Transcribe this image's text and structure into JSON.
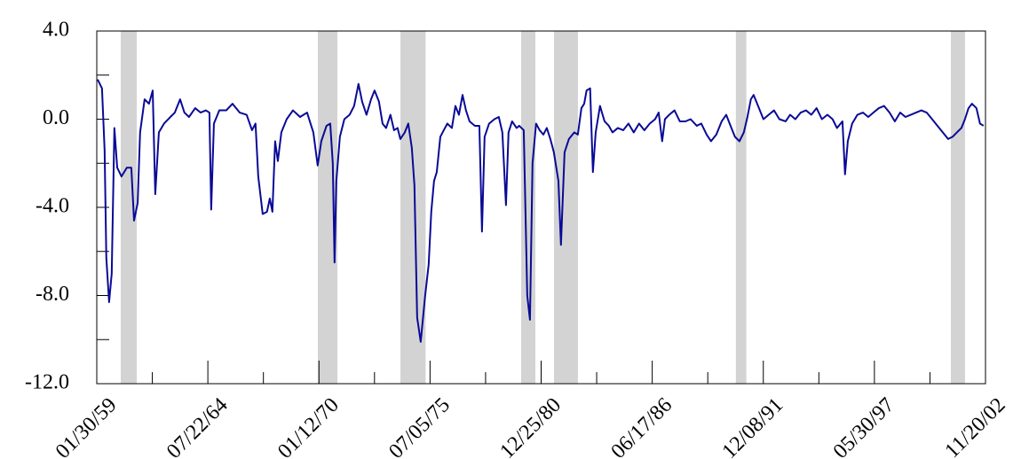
{
  "chart_data": {
    "type": "line",
    "color": "#0a0a96",
    "shade_color": "#d3d3d3",
    "xlim": [
      "01/30/59",
      "11/20/02"
    ],
    "xticks": [
      "01/30/59",
      "07/22/64",
      "01/12/70",
      "07/05/75",
      "12/25/80",
      "06/17/86",
      "12/08/91",
      "05/30/97",
      "11/20/02"
    ],
    "ylim": [
      -12,
      4
    ],
    "yticks": [
      {
        "value": 4,
        "label": "4.0"
      },
      {
        "value": 0,
        "label": "0.0"
      },
      {
        "value": -4,
        "label": "-4.0"
      },
      {
        "value": -8,
        "label": "-8.0"
      },
      {
        "value": -12,
        "label": "-12.0"
      }
    ],
    "shaded_ranges": [
      [
        "04/05/60",
        "01/19/61"
      ],
      [
        "12/23/69",
        "12/10/70"
      ],
      [
        "01/18/74",
        "04/16/75"
      ],
      [
        "01/01/80",
        "09/12/80"
      ],
      [
        "08/13/81",
        "10/18/82"
      ],
      [
        "08/01/90",
        "02/05/91"
      ],
      [
        "03/06/01",
        "11/16/01"
      ]
    ],
    "x": [
      "02/14/59",
      "05/04/59",
      "06/20/59",
      "07/21/59",
      "09/09/59",
      "10/26/59",
      "12/13/59",
      "02/02/60",
      "04/19/60",
      "07/24/60",
      "10/13/60",
      "12/01/60",
      "02/04/61",
      "03/20/61",
      "06/09/61",
      "08/27/61",
      "11/02/61",
      "12/18/61",
      "02/21/62",
      "05/25/62",
      "09/16/62",
      "12/05/62",
      "03/10/63",
      "05/27/63",
      "08/17/63",
      "12/07/63",
      "03/12/64",
      "06/16/64",
      "08/19/64",
      "09/20/64",
      "11/08/64",
      "02/13/65",
      "06/18/65",
      "10/09/65",
      "02/15/66",
      "06/20/66",
      "09/25/66",
      "11/27/66",
      "01/15/67",
      "04/05/67",
      "06/22/67",
      "08/11/67",
      "09/27/67",
      "11/15/67",
      "01/03/68",
      "03/06/68",
      "06/10/68",
      "10/01/68",
      "02/06/69",
      "06/12/69",
      "10/03/69",
      "12/20/69",
      "02/23/70",
      "05/28/70",
      "08/03/70",
      "09/18/70",
      "10/20/70",
      "11/21/70",
      "01/24/71",
      "04/14/71",
      "07/18/71",
      "10/07/71",
      "12/25/71",
      "02/28/72",
      "05/17/72",
      "08/07/72",
      "10/09/72",
      "12/27/72",
      "03/02/73",
      "05/05/73",
      "07/22/73",
      "09/25/73",
      "11/28/73",
      "01/16/74",
      "04/06/74",
      "06/08/74",
      "08/11/74",
      "09/27/74",
      "11/15/74",
      "01/18/75",
      "04/08/75",
      "06/10/75",
      "07/27/75",
      "09/15/75",
      "11/03/75",
      "01/06/76",
      "03/08/76",
      "05/11/76",
      "08/01/76",
      "10/04/76",
      "12/06/76",
      "02/09/77",
      "04/12/77",
      "06/15/77",
      "09/19/77",
      "12/09/77",
      "01/25/78",
      "03/13/78",
      "06/02/78",
      "09/06/78",
      "11/24/78",
      "01/27/79",
      "04/02/79",
      "05/18/79",
      "07/21/79",
      "10/10/79",
      "11/26/79",
      "02/16/80",
      "04/19/80",
      "06/07/80",
      "07/23/80",
      "09/25/80",
      "11/28/80",
      "02/03/81",
      "04/06/81",
      "06/09/81",
      "08/11/81",
      "11/01/81",
      "12/17/81",
      "02/20/82",
      "05/09/82",
      "08/14/82",
      "10/17/82",
      "12/20/82",
      "02/08/83",
      "03/23/83",
      "05/26/83",
      "07/15/83",
      "09/03/83",
      "11/20/83",
      "02/10/84",
      "04/27/84",
      "07/02/84",
      "10/06/84",
      "01/11/85",
      "04/15/85",
      "07/19/85",
      "10/23/85",
      "01/27/86",
      "05/03/86",
      "08/08/86",
      "10/11/86",
      "12/13/86",
      "02/01/87",
      "04/19/87",
      "07/23/87",
      "10/27/87",
      "02/04/88",
      "05/08/88",
      "08/27/88",
      "11/16/88",
      "02/21/89",
      "05/10/89",
      "08/14/89",
      "11/18/89",
      "02/08/90",
      "04/11/90",
      "07/15/90",
      "10/04/90",
      "12/22/90",
      "02/25/91",
      "04/28/91",
      "06/16/91",
      "09/05/91",
      "12/10/91",
      "03/14/92",
      "06/18/92",
      "09/22/92",
      "01/13/93",
      "04/03/93",
      "07/07/93",
      "10/11/93",
      "01/15/94",
      "04/20/94",
      "07/24/94",
      "10/28/94",
      "02/04/95",
      "05/08/95",
      "07/26/95",
      "11/02/95",
      "12/18/95",
      "02/06/96",
      "04/24/96",
      "07/28/96",
      "11/04/96",
      "02/08/97",
      "05/13/97",
      "08/17/97",
      "11/21/97",
      "02/26/98",
      "06/02/98",
      "09/06/98",
      "12/10/98",
      "03/15/99",
      "06/18/99",
      "09/23/99",
      "12/27/99",
      "04/03/00",
      "07/08/00",
      "10/12/00",
      "01/16/01",
      "04/06/01",
      "06/23/01",
      "09/12/01",
      "11/15/01",
      "01/18/02",
      "03/21/02",
      "06/10/02",
      "08/13/02",
      "10/16/02"
    ],
    "values": [
      1.8,
      1.4,
      -1.4,
      -6.3,
      -8.3,
      -7.0,
      -0.4,
      -2.2,
      -2.6,
      -2.2,
      -2.2,
      -4.6,
      -3.8,
      -0.6,
      0.9,
      0.7,
      1.3,
      -3.4,
      -0.6,
      -0.2,
      0.1,
      0.3,
      0.9,
      0.3,
      0.1,
      0.5,
      0.3,
      0.4,
      0.3,
      -4.1,
      -0.2,
      0.4,
      0.4,
      0.7,
      0.3,
      0.2,
      -0.5,
      -0.2,
      -2.6,
      -4.3,
      -4.2,
      -3.6,
      -4.2,
      -1.0,
      -1.9,
      -0.6,
      0.0,
      0.4,
      0.1,
      0.3,
      -0.6,
      -2.1,
      -1.0,
      -0.3,
      -0.2,
      -2.0,
      -6.5,
      -2.8,
      -0.8,
      0.0,
      0.2,
      0.6,
      1.6,
      0.8,
      0.2,
      0.9,
      1.3,
      0.8,
      -0.2,
      -0.4,
      0.2,
      -0.5,
      -0.4,
      -0.9,
      -0.6,
      -0.2,
      -1.3,
      -3.0,
      -9.0,
      -10.1,
      -8.0,
      -6.6,
      -4.2,
      -2.8,
      -2.4,
      -0.8,
      -0.5,
      -0.2,
      -0.4,
      0.6,
      0.2,
      1.1,
      0.4,
      -0.1,
      -0.3,
      -0.3,
      -5.1,
      -0.8,
      -0.2,
      0.0,
      0.1,
      -0.6,
      -3.9,
      -0.6,
      -0.1,
      -0.4,
      -0.3,
      -0.5,
      -8.0,
      -9.1,
      -2.0,
      -0.2,
      -0.5,
      -0.7,
      -0.4,
      -0.9,
      -1.5,
      -2.8,
      -5.7,
      -1.5,
      -0.9,
      -0.6,
      -0.7,
      0.5,
      0.7,
      1.3,
      1.4,
      -2.4,
      -0.6,
      0.6,
      -0.1,
      -0.3,
      -0.6,
      -0.4,
      -0.5,
      -0.2,
      -0.6,
      -0.2,
      -0.5,
      -0.2,
      0.0,
      0.3,
      -1.0,
      0.0,
      0.2,
      0.4,
      -0.1,
      -0.1,
      0.0,
      -0.3,
      -0.2,
      -0.7,
      -1.0,
      -0.7,
      -0.1,
      0.2,
      -0.2,
      -0.8,
      -1.0,
      -0.6,
      0.1,
      0.9,
      1.1,
      0.6,
      0.0,
      0.2,
      0.4,
      0.0,
      -0.1,
      0.2,
      0.0,
      0.3,
      0.4,
      0.2,
      0.5,
      0.0,
      0.2,
      0.0,
      -0.4,
      -0.1,
      -2.5,
      -1.0,
      -0.2,
      0.2,
      0.3,
      0.1,
      0.3,
      0.5,
      0.6,
      0.3,
      -0.1,
      0.3,
      0.1,
      0.2,
      0.3,
      0.4,
      0.3,
      0.0,
      -0.3,
      -0.6,
      -0.9,
      -0.8,
      -0.6,
      -0.4,
      0.0,
      0.5,
      0.7,
      0.5,
      -0.2,
      -0.3
    ]
  }
}
